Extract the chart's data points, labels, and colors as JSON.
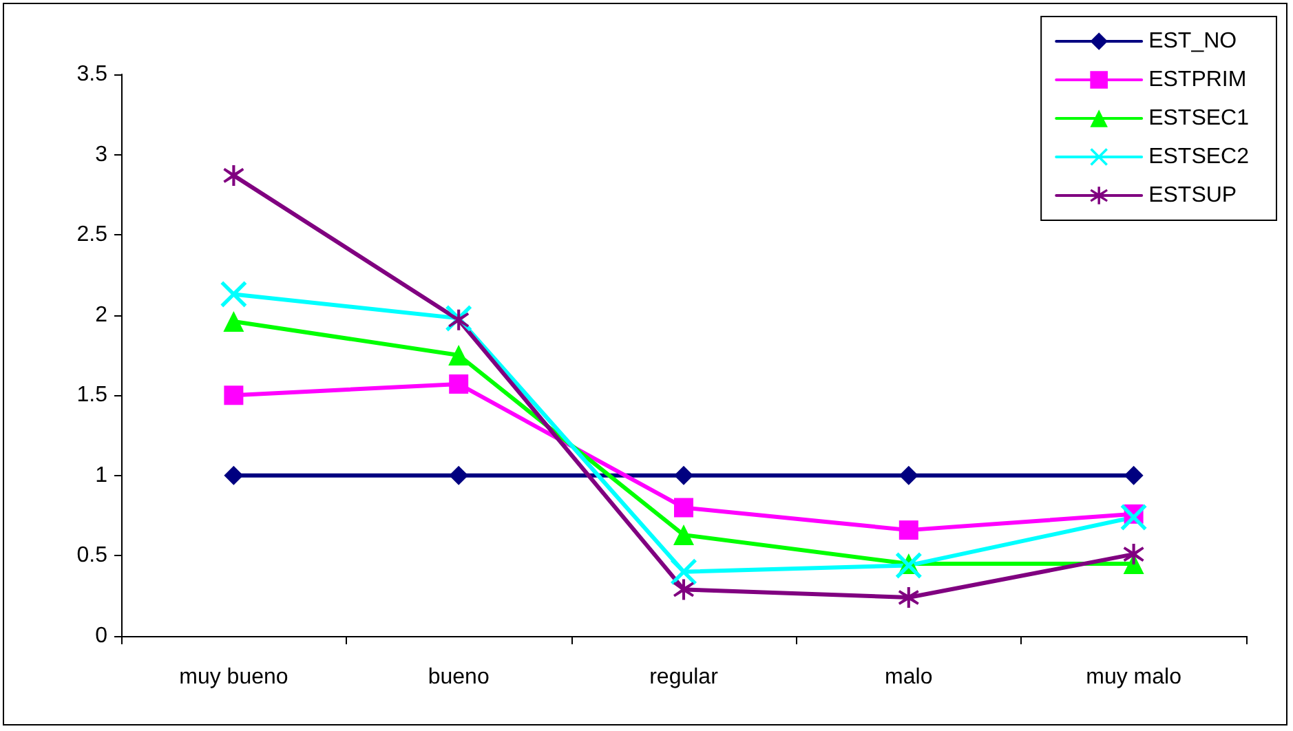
{
  "chart_data": {
    "type": "line",
    "categories": [
      "muy bueno",
      "bueno",
      "regular",
      "malo",
      "muy malo"
    ],
    "series": [
      {
        "name": "EST_NO",
        "color": "#000080",
        "marker": "diamond",
        "values": [
          1,
          1,
          1,
          1,
          1
        ]
      },
      {
        "name": "ESTPRIM",
        "color": "#ff00ff",
        "marker": "square",
        "values": [
          1.5,
          1.57,
          0.8,
          0.66,
          0.76
        ]
      },
      {
        "name": "ESTSEC1",
        "color": "#00ff00",
        "marker": "triangle",
        "values": [
          1.96,
          1.75,
          0.63,
          0.45,
          0.45
        ]
      },
      {
        "name": "ESTSEC2",
        "color": "#00ffff",
        "marker": "cross",
        "values": [
          2.13,
          1.98,
          0.4,
          0.44,
          0.74
        ]
      },
      {
        "name": "ESTSUP",
        "color": "#800080",
        "marker": "star",
        "values": [
          2.87,
          1.97,
          0.29,
          0.24,
          0.51
        ]
      }
    ],
    "ylim": [
      0,
      3.5
    ],
    "yticks": [
      0,
      0.5,
      1,
      1.5,
      2,
      2.5,
      3,
      3.5
    ],
    "grid": false,
    "legend": "top right",
    "line_style": "solid"
  }
}
